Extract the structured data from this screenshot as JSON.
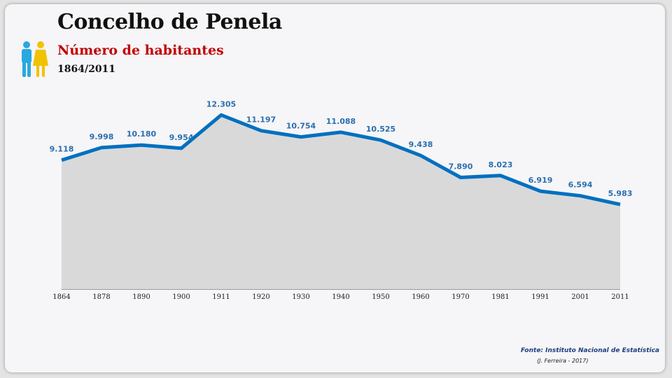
{
  "header": {
    "title": "Concelho de Penela",
    "subtitle": "Número de habitantes",
    "period": "1864/2011"
  },
  "footer": {
    "source": "Fonte: Instituto Nacional de Estatística",
    "author": "(J. Ferreira - 2017)"
  },
  "icons": [
    "people-icon"
  ],
  "colors": {
    "line": "#0070c0",
    "area": "#d9d9d9",
    "label": "#2a6fb0",
    "subtitle": "#c00000"
  },
  "chart_data": {
    "type": "area",
    "categories": [
      "1864",
      "1878",
      "1890",
      "1900",
      "1911",
      "1920",
      "1930",
      "1940",
      "1950",
      "1960",
      "1970",
      "1981",
      "1991",
      "2001",
      "2011"
    ],
    "values": [
      9118,
      9998,
      10180,
      9954,
      12305,
      11197,
      10754,
      11088,
      10525,
      9438,
      7890,
      8023,
      6919,
      6594,
      5983
    ],
    "data_labels": [
      "9.118",
      "9.998",
      "10.180",
      "9.954",
      "12.305",
      "11.197",
      "10.754",
      "11.088",
      "10.525",
      "9.438",
      "7.890",
      "8.023",
      "6.919",
      "6.594",
      "5.983"
    ],
    "title": "Concelho de Penela",
    "subtitle": "Número de habitantes",
    "xlabel": "",
    "ylabel": "",
    "ylim": [
      0,
      14000
    ],
    "grid": false,
    "legend": "none"
  }
}
